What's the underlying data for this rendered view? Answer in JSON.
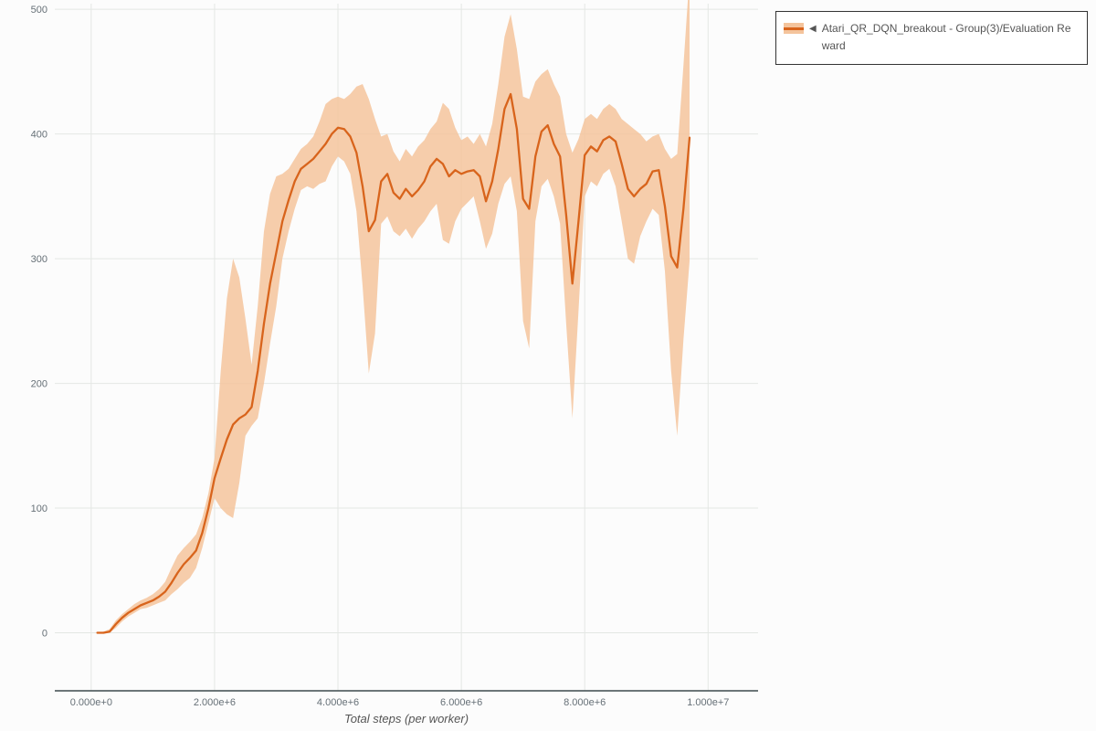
{
  "page": {
    "background": "#fcfcfc"
  },
  "legend": {
    "toggle_icon": "◀",
    "series_label": "Atari_QR_DQN_breakout - Group(3)/Evaluation Reward",
    "border_color": "#333333",
    "background": "#ffffff"
  },
  "chart_data": {
    "type": "line",
    "title": "",
    "xlabel": "Total steps (per worker)",
    "ylabel": "",
    "legend_position": "top-right-outside",
    "grid": true,
    "grid_color": "#e4e7e4",
    "axis_line_color": "#3d4a4d",
    "tick_label_color": "#667077",
    "x_scale": 1000000,
    "x_tick_labels": [
      "0.000e+0",
      "2.000e+6",
      "4.000e+6",
      "6.000e+6",
      "8.000e+6",
      "1.000e+7"
    ],
    "x_tick_values": [
      0,
      2000000,
      4000000,
      6000000,
      8000000,
      10000000
    ],
    "y_tick_labels": [
      "0",
      "100",
      "200",
      "300",
      "400",
      "500"
    ],
    "y_tick_values": [
      0,
      100,
      200,
      300,
      400,
      500
    ],
    "xlim": [
      -590000,
      10810000
    ],
    "ylim": [
      -46.5,
      504.5
    ],
    "series": [
      {
        "name": "Atari_QR_DQN_breakout - Group(3)/Evaluation Reward",
        "color": "#d8641c",
        "band_color": "#f4c49c",
        "x_millions": [
          0.1,
          0.2,
          0.3,
          0.4,
          0.5,
          0.6,
          0.7,
          0.8,
          0.9,
          1.0,
          1.1,
          1.2,
          1.3,
          1.4,
          1.5,
          1.6,
          1.7,
          1.8,
          1.9,
          2.0,
          2.1,
          2.2,
          2.3,
          2.4,
          2.5,
          2.6,
          2.7,
          2.8,
          2.9,
          3.0,
          3.1,
          3.2,
          3.3,
          3.4,
          3.5,
          3.6,
          3.7,
          3.8,
          3.9,
          4.0,
          4.1,
          4.2,
          4.3,
          4.4,
          4.5,
          4.6,
          4.7,
          4.8,
          4.9,
          5.0,
          5.1,
          5.2,
          5.3,
          5.4,
          5.5,
          5.6,
          5.7,
          5.8,
          5.9,
          6.0,
          6.1,
          6.2,
          6.3,
          6.4,
          6.5,
          6.6,
          6.7,
          6.8,
          6.9,
          7.0,
          7.1,
          7.2,
          7.3,
          7.4,
          7.5,
          7.6,
          7.7,
          7.8,
          7.9,
          8.0,
          8.1,
          8.2,
          8.3,
          8.4,
          8.5,
          8.6,
          8.7,
          8.8,
          8.9,
          9.0,
          9.1,
          9.2,
          9.3,
          9.4,
          9.5,
          9.6,
          9.7
        ],
        "mean": [
          0,
          0,
          1,
          7,
          12,
          16,
          19,
          22,
          24,
          26,
          29,
          33,
          40,
          48,
          55,
          60,
          66,
          80,
          100,
          124,
          140,
          155,
          167,
          172,
          175,
          181,
          210,
          248,
          280,
          305,
          330,
          347,
          362,
          372,
          376,
          380,
          386,
          392,
          400,
          405,
          404,
          398,
          385,
          358,
          322,
          331,
          362,
          368,
          353,
          348,
          356,
          350,
          355,
          362,
          374,
          380,
          376,
          366,
          371,
          368,
          370,
          371,
          366,
          346,
          362,
          388,
          420,
          432,
          404,
          348,
          340,
          382,
          402,
          407,
          392,
          382,
          335,
          280,
          330,
          383,
          390,
          386,
          395,
          398,
          394,
          376,
          356,
          350,
          356,
          360,
          370,
          371,
          342,
          302,
          293,
          340,
          397
        ],
        "lower": [
          0,
          0,
          0,
          4,
          9,
          13,
          16,
          19,
          20,
          22,
          24,
          26,
          31,
          35,
          40,
          44,
          52,
          68,
          88,
          108,
          100,
          95,
          92,
          120,
          158,
          166,
          172,
          200,
          232,
          262,
          300,
          322,
          340,
          355,
          358,
          356,
          360,
          362,
          374,
          382,
          378,
          368,
          338,
          278,
          208,
          240,
          328,
          334,
          322,
          318,
          324,
          316,
          324,
          330,
          338,
          344,
          315,
          312,
          330,
          340,
          345,
          350,
          330,
          308,
          320,
          344,
          360,
          366,
          338,
          250,
          228,
          330,
          358,
          364,
          350,
          328,
          248,
          172,
          258,
          350,
          362,
          358,
          368,
          372,
          358,
          330,
          300,
          296,
          318,
          330,
          340,
          335,
          290,
          210,
          158,
          235,
          298
        ],
        "upper": [
          0,
          1,
          3,
          10,
          15,
          19,
          23,
          26,
          28,
          31,
          35,
          41,
          52,
          62,
          68,
          73,
          79,
          92,
          112,
          140,
          210,
          268,
          300,
          285,
          252,
          215,
          262,
          322,
          352,
          366,
          368,
          372,
          380,
          388,
          392,
          398,
          410,
          424,
          428,
          430,
          428,
          432,
          438,
          440,
          428,
          412,
          398,
          400,
          386,
          378,
          388,
          382,
          390,
          395,
          404,
          410,
          425,
          420,
          405,
          395,
          398,
          392,
          400,
          390,
          408,
          440,
          478,
          496,
          468,
          430,
          428,
          442,
          448,
          452,
          440,
          430,
          400,
          385,
          396,
          412,
          416,
          412,
          420,
          424,
          420,
          412,
          408,
          404,
          400,
          394,
          398,
          400,
          388,
          380,
          384,
          455,
          528
        ]
      }
    ]
  }
}
